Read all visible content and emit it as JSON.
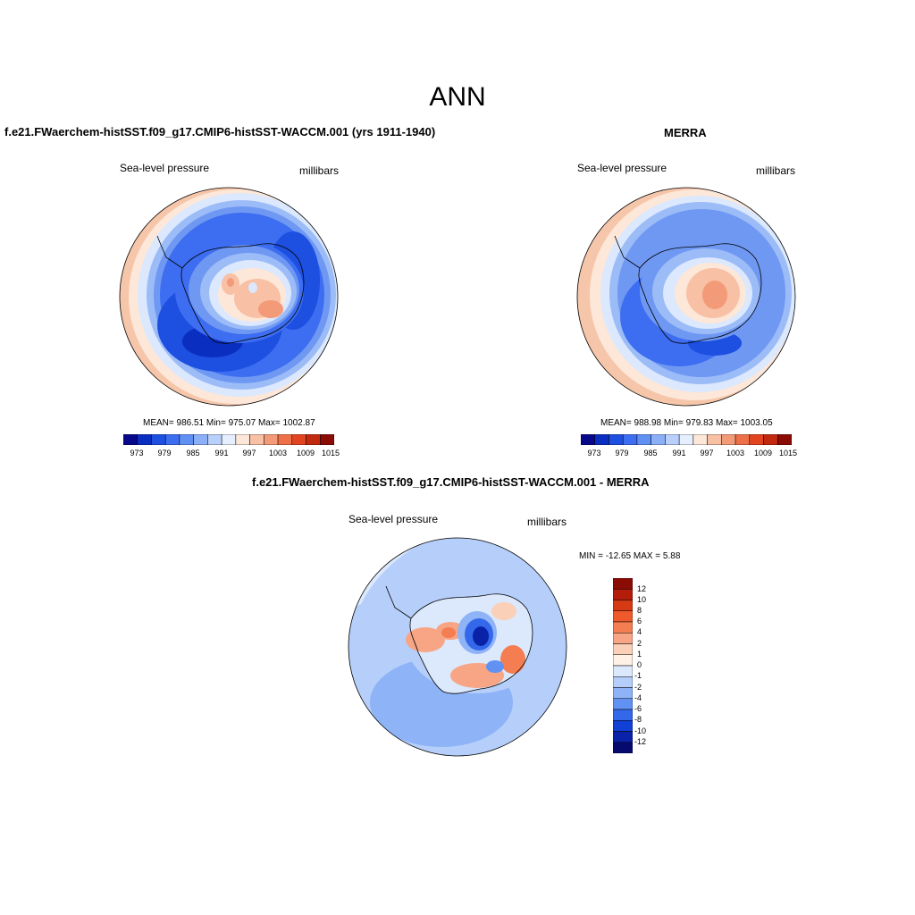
{
  "figure": {
    "title": "ANN"
  },
  "panels": [
    {
      "title": "f.e21.FWaerchem-histSST.f09_g17.CMIP6-histSST-WACCM.001 (yrs 1911-1940)",
      "variable": "Sea-level pressure",
      "units": "millibars",
      "stats_text": "MEAN= 986.51  Min= 975.07  Max= 1002.87",
      "mean": 986.51,
      "min": 975.07,
      "max": 1002.87
    },
    {
      "title": "MERRA",
      "variable": "Sea-level pressure",
      "units": "millibars",
      "stats_text": "MEAN= 988.98  Min= 979.83  Max= 1003.05",
      "mean": 988.98,
      "min": 979.83,
      "max": 1003.05
    },
    {
      "title": "f.e21.FWaerchem-histSST.f09_g17.CMIP6-histSST-WACCM.001 - MERRA",
      "variable": "Sea-level pressure",
      "units": "millibars",
      "stats_text": "MIN = -12.65 MAX =   5.88",
      "min": -12.65,
      "max": 5.88
    }
  ],
  "colorbar_abs": {
    "tick_labels": [
      "973",
      "979",
      "985",
      "991",
      "997",
      "1003",
      "1009",
      "1015"
    ],
    "colors": [
      "#08088a",
      "#0a2fc0",
      "#1d4fe0",
      "#3d6df0",
      "#6190f5",
      "#8bb0f8",
      "#b8d0fb",
      "#e6efff",
      "#fde7d8",
      "#f8c0a4",
      "#f39a78",
      "#ee7049",
      "#e34420",
      "#c22a10",
      "#8a0c05"
    ]
  },
  "colorbar_diff": {
    "labels": [
      "12",
      "10",
      "8",
      "6",
      "4",
      "2",
      "1",
      "0",
      "-1",
      "-2",
      "-4",
      "-6",
      "-8",
      "-10",
      "-12"
    ],
    "colors": [
      "#8a0c05",
      "#b31d0a",
      "#d63a15",
      "#ee5a2c",
      "#f47e52",
      "#f7a585",
      "#fbd0b8",
      "#fff1e6",
      "#dce8fb",
      "#b6cffa",
      "#8eb3f7",
      "#6191f2",
      "#3468ea",
      "#1040d4",
      "#0a22a8",
      "#060a6e"
    ]
  }
}
